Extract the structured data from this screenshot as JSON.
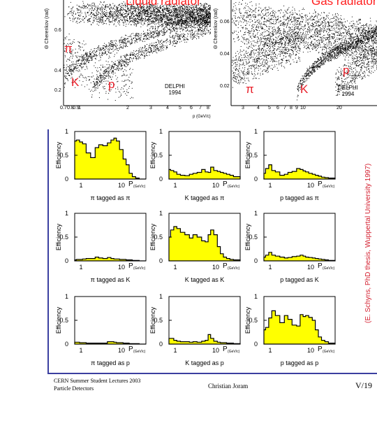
{
  "top_plots": {
    "left": {
      "radiator_label": "Liquid radiator",
      "ylabel": "Θ Cherenkov (rad)",
      "y_ticks": [
        "0.6",
        "0.4",
        "0.2"
      ],
      "x_ticks": [
        "0.7",
        "0.8",
        "0.9",
        "1",
        "2",
        "3",
        "4",
        "5",
        "6",
        "7",
        "8"
      ],
      "xlabel": "p (GeV/c)",
      "particle_labels": [
        "π",
        "K",
        "p"
      ],
      "experiment": "DELPHI",
      "year": "1994"
    },
    "right": {
      "radiator_label": "Gas radiator",
      "ylabel": "Θ Cherenkov (rad)",
      "y_ticks": [
        "0.06",
        "0.04",
        "0.02"
      ],
      "x_ticks": [
        "3",
        "4",
        "5",
        "6",
        "7",
        "8",
        "9",
        "10",
        "20"
      ],
      "particle_labels": [
        "π",
        "K",
        "p"
      ],
      "experiment": "DELPHI",
      "year": "1994"
    }
  },
  "efficiency_grid": {
    "ylabel": "Efficiency",
    "xlabel": "P",
    "xunit": "(GeV/c)",
    "y_ticks": [
      "0",
      "0.5",
      "1"
    ],
    "x_ticks": [
      "1",
      "10"
    ]
  },
  "chart_data": [
    {
      "type": "area",
      "title": "π tagged as π",
      "x": [
        0.7,
        0.85,
        1,
        1.2,
        1.5,
        2,
        2.5,
        3,
        4,
        5,
        6,
        7,
        8,
        10,
        12,
        14,
        17,
        20,
        25,
        30
      ],
      "values": [
        0.8,
        0.82,
        0.78,
        0.74,
        0.55,
        0.45,
        0.66,
        0.72,
        0.7,
        0.76,
        0.82,
        0.86,
        0.8,
        0.62,
        0.42,
        0.3,
        0.12,
        0.05,
        0.02,
        0
      ],
      "ylim": [
        0,
        1
      ]
    },
    {
      "type": "area",
      "title": "K tagged as π",
      "x": [
        0.7,
        0.85,
        1,
        1.2,
        1.5,
        2,
        2.5,
        3,
        4,
        5,
        6,
        7,
        8,
        10,
        12,
        14,
        17,
        20,
        25,
        30
      ],
      "values": [
        0.2,
        0.18,
        0.15,
        0.1,
        0.08,
        0.07,
        0.1,
        0.12,
        0.14,
        0.2,
        0.15,
        0.14,
        0.25,
        0.18,
        0.16,
        0.14,
        0.12,
        0.1,
        0.08,
        0.05
      ],
      "ylim": [
        0,
        1
      ]
    },
    {
      "type": "area",
      "title": "p tagged as π",
      "x": [
        0.7,
        0.85,
        1,
        1.2,
        1.5,
        2,
        2.5,
        3,
        4,
        5,
        6,
        7,
        8,
        10,
        12,
        14,
        17,
        20,
        25,
        30
      ],
      "values": [
        0.12,
        0.22,
        0.3,
        0.18,
        0.15,
        0.08,
        0.1,
        0.14,
        0.16,
        0.22,
        0.2,
        0.17,
        0.15,
        0.12,
        0.1,
        0.08,
        0.06,
        0.04,
        0.03,
        0.02
      ],
      "ylim": [
        0,
        1
      ]
    },
    {
      "type": "area",
      "title": "π tagged as K",
      "x": [
        0.7,
        0.85,
        1,
        1.2,
        1.5,
        2,
        2.5,
        3,
        4,
        5,
        6,
        7,
        8,
        10,
        12,
        14,
        17,
        20,
        25,
        30
      ],
      "values": [
        0.02,
        0.03,
        0.03,
        0.04,
        0.05,
        0.05,
        0.08,
        0.06,
        0.05,
        0.07,
        0.05,
        0.04,
        0.04,
        0.03,
        0.03,
        0.02,
        0.02,
        0.01,
        0.01,
        0
      ],
      "ylim": [
        0,
        1
      ]
    },
    {
      "type": "area",
      "title": "K tagged as K",
      "x": [
        0.7,
        0.85,
        1,
        1.2,
        1.5,
        2,
        2.5,
        3,
        4,
        5,
        6,
        7,
        8,
        10,
        12,
        14,
        17,
        20,
        25,
        30
      ],
      "values": [
        0.5,
        0.65,
        0.72,
        0.68,
        0.6,
        0.55,
        0.48,
        0.55,
        0.5,
        0.42,
        0.4,
        0.55,
        0.65,
        0.55,
        0.3,
        0.15,
        0.08,
        0.05,
        0.03,
        0.02
      ],
      "ylim": [
        0,
        1
      ]
    },
    {
      "type": "area",
      "title": "p tagged as K",
      "x": [
        0.7,
        0.85,
        1,
        1.2,
        1.5,
        2,
        2.5,
        3,
        4,
        5,
        6,
        7,
        8,
        10,
        12,
        14,
        17,
        20,
        25,
        30
      ],
      "values": [
        0.08,
        0.12,
        0.18,
        0.12,
        0.1,
        0.08,
        0.06,
        0.07,
        0.09,
        0.1,
        0.12,
        0.1,
        0.08,
        0.07,
        0.06,
        0.05,
        0.04,
        0.03,
        0.02,
        0.01
      ],
      "ylim": [
        0,
        1
      ]
    },
    {
      "type": "area",
      "title": "π tagged as p",
      "x": [
        0.7,
        0.85,
        1,
        1.2,
        1.5,
        2,
        2.5,
        3,
        4,
        5,
        6,
        7,
        8,
        10,
        12,
        14,
        17,
        20,
        25,
        30
      ],
      "values": [
        0.04,
        0.04,
        0.03,
        0.03,
        0.02,
        0.02,
        0.02,
        0.02,
        0.02,
        0.05,
        0.05,
        0.04,
        0.03,
        0.03,
        0.02,
        0.02,
        0.01,
        0.01,
        0.01,
        0
      ],
      "ylim": [
        0,
        1
      ]
    },
    {
      "type": "area",
      "title": "K tagged as p",
      "x": [
        0.7,
        0.85,
        1,
        1.2,
        1.5,
        2,
        2.5,
        3,
        4,
        5,
        6,
        7,
        8,
        10,
        12,
        14,
        17,
        20,
        25,
        30
      ],
      "values": [
        0.12,
        0.12,
        0.08,
        0.06,
        0.05,
        0.05,
        0.04,
        0.05,
        0.04,
        0.06,
        0.08,
        0.2,
        0.12,
        0.06,
        0.04,
        0.03,
        0.03,
        0.02,
        0.02,
        0.01
      ],
      "ylim": [
        0,
        1
      ]
    },
    {
      "type": "area",
      "title": "p tagged as p",
      "x": [
        0.7,
        0.85,
        1,
        1.2,
        1.5,
        2,
        2.5,
        3,
        4,
        5,
        6,
        7,
        8,
        10,
        12,
        14,
        17,
        20,
        25,
        30
      ],
      "values": [
        0.3,
        0.35,
        0.55,
        0.7,
        0.6,
        0.45,
        0.6,
        0.52,
        0.4,
        0.38,
        0.62,
        0.58,
        0.6,
        0.56,
        0.5,
        0.3,
        0.15,
        0.08,
        0.05,
        0.02
      ],
      "ylim": [
        0,
        1
      ]
    }
  ],
  "side_reference": "(E. Schyns, PhD thesis, Wuppertal University 1997)",
  "footer": {
    "left_line1": "CERN Summer Student Lectures 2003",
    "left_line2": "Particle Detectors",
    "center": "Christian Joram",
    "right": "V/19"
  }
}
